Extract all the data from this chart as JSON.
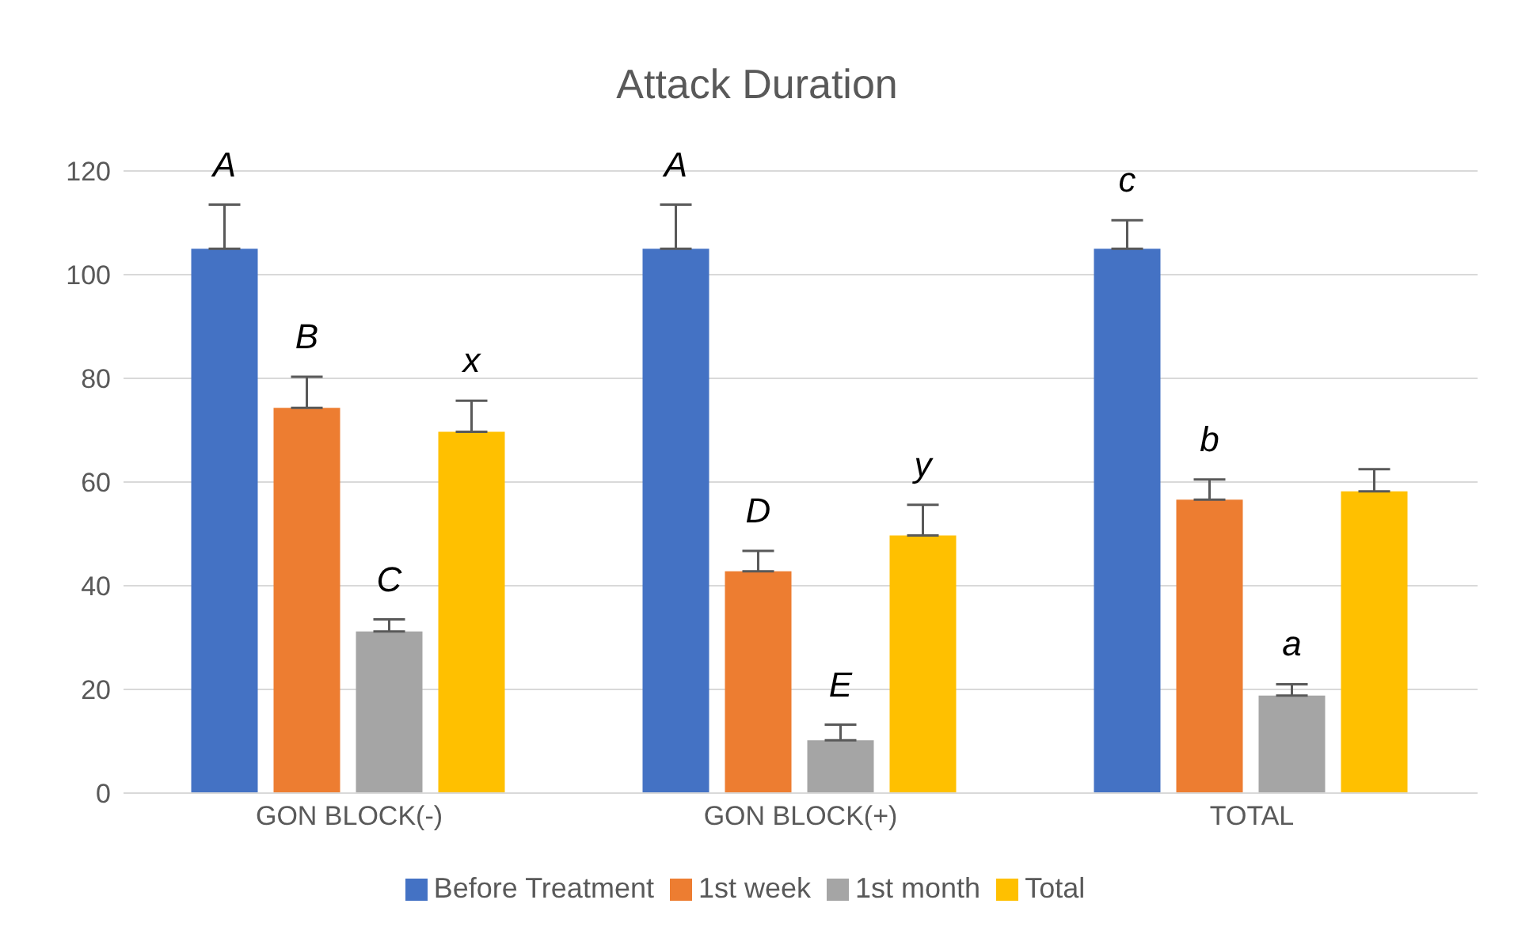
{
  "chart_data": {
    "type": "bar",
    "title": "Attack Duration",
    "categories": [
      "GON BLOCK(-)",
      "GON BLOCK(+)",
      "TOTAL"
    ],
    "series": [
      {
        "name": "Before Treatment",
        "color": "#4472c4",
        "values": [
          105,
          105,
          105
        ],
        "errors": [
          [
            105,
            113.5
          ],
          [
            105,
            113.5
          ],
          [
            105,
            110.5
          ]
        ],
        "value_labels": [
          "A",
          "A",
          "c"
        ]
      },
      {
        "name": "1st week",
        "color": "#ed7d31",
        "values": [
          74.3,
          42.8,
          56.6
        ],
        "errors": [
          [
            74.3,
            80.3
          ],
          [
            42.8,
            46.7
          ],
          [
            56.6,
            60.5
          ]
        ],
        "value_labels": [
          "B",
          "D",
          "b"
        ]
      },
      {
        "name": "1st month",
        "color": "#a5a5a5",
        "values": [
          31.2,
          10.2,
          18.8
        ],
        "errors": [
          [
            31.2,
            33.5
          ],
          [
            10.2,
            13.2
          ],
          [
            18.8,
            21
          ]
        ],
        "value_labels": [
          "C",
          "E",
          "a"
        ]
      },
      {
        "name": "Total",
        "color": "#ffc000",
        "values": [
          69.7,
          49.7,
          58.2
        ],
        "errors": [
          [
            69.7,
            75.7
          ],
          [
            49.7,
            55.6
          ],
          [
            58.2,
            62.5
          ]
        ],
        "value_labels": [
          "x",
          "y",
          null
        ]
      }
    ],
    "ylim": [
      0,
      120
    ],
    "yticks": [
      0,
      20,
      40,
      60,
      80,
      100,
      120
    ],
    "grid": "y",
    "legend": "bottom"
  }
}
